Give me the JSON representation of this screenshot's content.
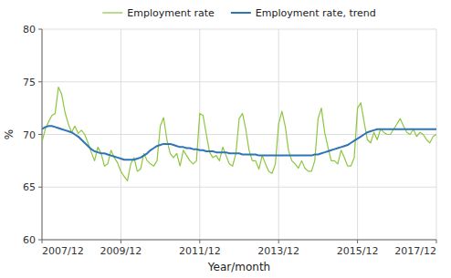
{
  "chart_data": {
    "type": "line",
    "xlabel": "Year/month",
    "ylabel": "%",
    "categories": [
      "2007/12",
      null,
      null,
      null,
      null,
      null,
      null,
      null,
      null,
      null,
      null,
      null,
      null,
      null,
      null,
      null,
      null,
      null,
      null,
      null,
      null,
      null,
      null,
      null,
      "2009/12",
      null,
      null,
      null,
      null,
      null,
      null,
      null,
      null,
      null,
      null,
      null,
      null,
      null,
      null,
      null,
      null,
      null,
      null,
      null,
      null,
      null,
      null,
      null,
      "2011/12",
      null,
      null,
      null,
      null,
      null,
      null,
      null,
      null,
      null,
      null,
      null,
      null,
      null,
      null,
      null,
      null,
      null,
      null,
      null,
      null,
      null,
      null,
      null,
      "2013/12",
      null,
      null,
      null,
      null,
      null,
      null,
      null,
      null,
      null,
      null,
      null,
      null,
      null,
      null,
      null,
      null,
      null,
      null,
      null,
      null,
      null,
      null,
      null,
      "2015/12",
      null,
      null,
      null,
      null,
      null,
      null,
      null,
      null,
      null,
      null,
      null,
      null,
      null,
      null,
      null,
      null,
      null,
      null,
      null,
      null,
      null,
      null,
      null,
      "2017/12"
    ],
    "ylim": [
      60,
      80
    ],
    "yticks": [
      60,
      65,
      70,
      75,
      80
    ],
    "grid": true,
    "legend": "top",
    "series": [
      {
        "name": "Employment rate",
        "color": "#8dc63f",
        "values": [
          69.3,
          70.5,
          71.2,
          71.8,
          72.0,
          74.5,
          73.8,
          72.1,
          71.0,
          70.2,
          70.8,
          70.1,
          70.4,
          70.0,
          69.2,
          68.3,
          67.5,
          68.8,
          68.2,
          67.0,
          67.2,
          68.5,
          67.8,
          67.3,
          66.5,
          66.0,
          65.6,
          67.2,
          67.8,
          66.5,
          66.7,
          68.2,
          67.5,
          67.2,
          67.0,
          67.5,
          70.8,
          71.6,
          69.5,
          68.2,
          67.8,
          68.2,
          67.0,
          68.5,
          68.0,
          67.5,
          67.2,
          67.5,
          72.0,
          71.8,
          70.0,
          68.3,
          67.8,
          68.0,
          67.5,
          68.8,
          68.0,
          67.2,
          67.0,
          68.2,
          71.5,
          72.0,
          70.5,
          68.5,
          67.5,
          67.5,
          66.7,
          68.0,
          67.2,
          66.5,
          66.3,
          67.2,
          71.0,
          72.2,
          70.8,
          68.5,
          67.5,
          67.2,
          66.8,
          67.5,
          66.8,
          66.5,
          66.5,
          67.5,
          71.5,
          72.5,
          70.2,
          68.8,
          67.5,
          67.5,
          67.2,
          68.5,
          67.8,
          67.0,
          67.0,
          67.8,
          72.5,
          73.0,
          71.2,
          69.5,
          69.2,
          70.2,
          69.5,
          70.5,
          70.2,
          70.0,
          70.0,
          70.5,
          71.0,
          71.5,
          70.8,
          70.2,
          70.0,
          70.5,
          69.8,
          70.2,
          70.0,
          69.5,
          69.2,
          69.8,
          70.0
        ]
      },
      {
        "name": "Employment rate, trend",
        "color": "#2e75b6",
        "values": [
          70.5,
          70.7,
          70.8,
          70.8,
          70.7,
          70.6,
          70.5,
          70.4,
          70.3,
          70.2,
          70.0,
          69.8,
          69.5,
          69.2,
          68.9,
          68.6,
          68.4,
          68.3,
          68.2,
          68.2,
          68.1,
          68.0,
          67.9,
          67.8,
          67.7,
          67.6,
          67.6,
          67.6,
          67.6,
          67.7,
          67.8,
          68.0,
          68.2,
          68.5,
          68.7,
          68.9,
          69.0,
          69.1,
          69.1,
          69.1,
          69.0,
          68.9,
          68.8,
          68.8,
          68.7,
          68.7,
          68.6,
          68.6,
          68.5,
          68.5,
          68.4,
          68.4,
          68.4,
          68.3,
          68.3,
          68.3,
          68.3,
          68.2,
          68.2,
          68.2,
          68.2,
          68.1,
          68.1,
          68.1,
          68.1,
          68.1,
          68.0,
          68.0,
          68.0,
          68.0,
          68.0,
          68.0,
          68.0,
          68.0,
          68.0,
          68.0,
          68.0,
          68.0,
          68.0,
          68.0,
          68.0,
          68.0,
          68.0,
          68.1,
          68.1,
          68.2,
          68.3,
          68.4,
          68.5,
          68.6,
          68.7,
          68.8,
          68.9,
          69.0,
          69.2,
          69.4,
          69.6,
          69.8,
          70.0,
          70.2,
          70.3,
          70.4,
          70.5,
          70.5,
          70.5,
          70.5,
          70.5,
          70.5,
          70.5,
          70.5,
          70.5,
          70.5,
          70.5,
          70.5,
          70.5,
          70.5,
          70.5,
          70.5,
          70.5,
          70.5,
          70.5
        ]
      }
    ]
  }
}
